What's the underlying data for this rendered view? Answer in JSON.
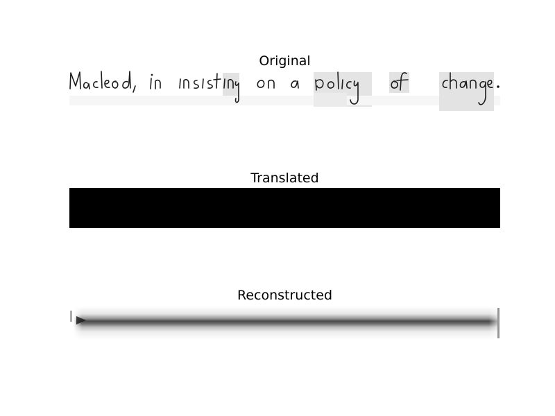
{
  "panels": [
    {
      "title": "Original",
      "image": {
        "kind": "handwriting",
        "text": "Macleod, in insisting on a policy of change."
      }
    },
    {
      "title": "Translated",
      "image": {
        "kind": "solid",
        "fill": "#000000"
      }
    },
    {
      "title": "Reconstructed",
      "image": {
        "kind": "blurred-stroke"
      }
    }
  ],
  "colors": {
    "background": "#ffffff",
    "text": "#000000",
    "ink": "#1a1a1a",
    "word_patch": "#e2e2e2",
    "solid_panel": "#000000"
  }
}
